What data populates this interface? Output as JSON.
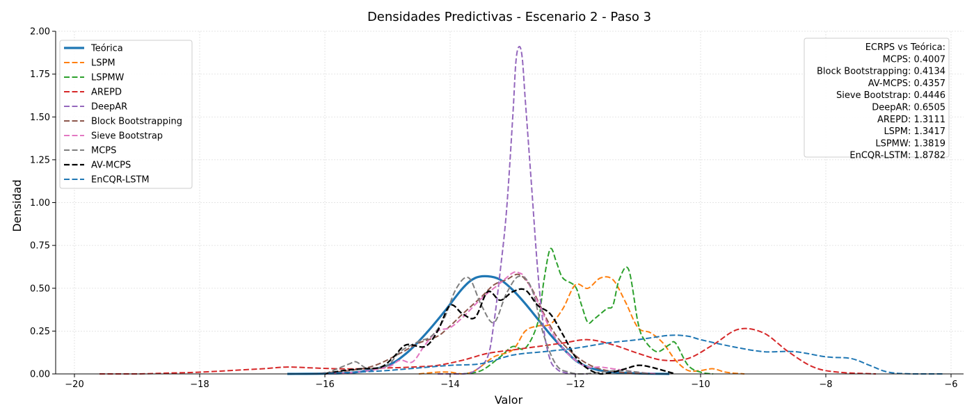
{
  "chart_data": {
    "type": "line",
    "title": "Densidades Predictivas - Escenario 2 - Paso 3",
    "xlabel": "Valor",
    "ylabel": "Densidad",
    "xlim": [
      -20.3,
      -5.8
    ],
    "ylim": [
      0,
      2.0
    ],
    "xticks": [
      -20,
      -18,
      -16,
      -14,
      -12,
      -10,
      -8,
      -6
    ],
    "xtick_labels": [
      "−20",
      "−18",
      "−16",
      "−14",
      "−12",
      "−10",
      "−8",
      "−6"
    ],
    "yticks": [
      0,
      0.25,
      0.5,
      0.75,
      1.0,
      1.25,
      1.5,
      1.75,
      2.0
    ],
    "ytick_labels": [
      "0.00",
      "0.25",
      "0.50",
      "0.75",
      "1.00",
      "1.25",
      "1.50",
      "1.75",
      "2.00"
    ],
    "grid": true,
    "legend_position": "top-left",
    "series": [
      {
        "name": "Teórica",
        "color": "#1f77b4",
        "style": "solid",
        "width": 3.2,
        "x": [
          -16.6,
          -16.0,
          -15.5,
          -15.0,
          -14.7,
          -14.4,
          -14.1,
          -13.8,
          -13.6,
          -13.4,
          -13.2,
          -13.0,
          -12.8,
          -12.6,
          -12.4,
          -12.2,
          -12.0,
          -11.8,
          -11.6,
          -11.4,
          -11.0,
          -10.5
        ],
        "y": [
          0.0,
          0.002,
          0.01,
          0.05,
          0.12,
          0.23,
          0.36,
          0.5,
          0.56,
          0.57,
          0.55,
          0.49,
          0.41,
          0.32,
          0.23,
          0.15,
          0.08,
          0.04,
          0.02,
          0.01,
          0.003,
          0.0
        ]
      },
      {
        "name": "LSPM",
        "color": "#ff7f0e",
        "style": "dashed",
        "width": 2,
        "x": [
          -14.5,
          -14.2,
          -14.0,
          -13.8,
          -13.6,
          -13.3,
          -13.0,
          -12.8,
          -12.6,
          -12.4,
          -12.2,
          -12.0,
          -11.8,
          -11.6,
          -11.4,
          -11.2,
          -11.0,
          -10.8,
          -10.6,
          -10.4,
          -10.2,
          -10.0,
          -9.8,
          -9.6,
          -9.3
        ],
        "y": [
          0.0,
          0.01,
          0.01,
          0.0,
          0.02,
          0.1,
          0.14,
          0.25,
          0.28,
          0.29,
          0.38,
          0.52,
          0.5,
          0.56,
          0.55,
          0.42,
          0.27,
          0.24,
          0.18,
          0.08,
          0.02,
          0.02,
          0.03,
          0.01,
          0.0
        ]
      },
      {
        "name": "LSPMW",
        "color": "#2ca02c",
        "style": "dashed",
        "width": 2,
        "x": [
          -13.8,
          -13.5,
          -13.2,
          -13.0,
          -12.8,
          -12.6,
          -12.5,
          -12.4,
          -12.3,
          -12.2,
          -12.0,
          -11.9,
          -11.8,
          -11.7,
          -11.5,
          -11.4,
          -11.3,
          -11.15,
          -11.0,
          -10.9,
          -10.7,
          -10.5,
          -10.4,
          -10.2,
          -10.0,
          -9.8
        ],
        "y": [
          0.0,
          0.02,
          0.1,
          0.16,
          0.15,
          0.3,
          0.55,
          0.73,
          0.65,
          0.56,
          0.51,
          0.4,
          0.3,
          0.32,
          0.38,
          0.4,
          0.55,
          0.61,
          0.3,
          0.2,
          0.13,
          0.17,
          0.18,
          0.05,
          0.01,
          0.0
        ]
      },
      {
        "name": "AREPD",
        "color": "#d62728",
        "style": "dashed",
        "width": 2,
        "x": [
          -19.6,
          -19.0,
          -18.5,
          -18.0,
          -17.5,
          -17.0,
          -16.6,
          -16.2,
          -15.8,
          -15.4,
          -15.0,
          -14.6,
          -14.2,
          -13.8,
          -13.4,
          -13.0,
          -12.6,
          -12.2,
          -11.8,
          -11.4,
          -11.0,
          -10.6,
          -10.2,
          -9.8,
          -9.4,
          -9.0,
          -8.6,
          -8.2,
          -7.8,
          -7.2
        ],
        "y": [
          0.0,
          0.0,
          0.005,
          0.01,
          0.02,
          0.03,
          0.04,
          0.035,
          0.03,
          0.03,
          0.035,
          0.04,
          0.05,
          0.08,
          0.12,
          0.14,
          0.16,
          0.18,
          0.2,
          0.17,
          0.12,
          0.08,
          0.09,
          0.17,
          0.26,
          0.24,
          0.13,
          0.04,
          0.01,
          0.0
        ]
      },
      {
        "name": "DeepAR",
        "color": "#9467bd",
        "style": "dashed",
        "width": 2,
        "x": [
          -14.2,
          -13.8,
          -13.6,
          -13.4,
          -13.3,
          -13.2,
          -13.1,
          -13.0,
          -12.95,
          -12.9,
          -12.85,
          -12.8,
          -12.7,
          -12.6,
          -12.5,
          -12.4,
          -12.3,
          -12.2,
          -12.0,
          -11.8
        ],
        "y": [
          0.0,
          0.0,
          0.02,
          0.1,
          0.3,
          0.6,
          0.95,
          1.5,
          1.82,
          1.91,
          1.85,
          1.6,
          1.1,
          0.6,
          0.25,
          0.08,
          0.03,
          0.01,
          0.0,
          0.0
        ]
      },
      {
        "name": "Block Bootstrapping",
        "color": "#8c564b",
        "style": "dashed",
        "width": 2,
        "x": [
          -16.2,
          -15.6,
          -15.2,
          -14.8,
          -14.5,
          -14.2,
          -14.0,
          -13.8,
          -13.5,
          -13.3,
          -13.1,
          -12.9,
          -12.7,
          -12.5,
          -12.3,
          -12.1,
          -11.9,
          -11.7,
          -11.5,
          -11.3,
          -11.1,
          -10.8
        ],
        "y": [
          0.0,
          0.02,
          0.05,
          0.12,
          0.18,
          0.22,
          0.28,
          0.35,
          0.45,
          0.52,
          0.55,
          0.58,
          0.5,
          0.35,
          0.22,
          0.14,
          0.08,
          0.04,
          0.02,
          0.01,
          0.005,
          0.0
        ]
      },
      {
        "name": "Sieve Bootstrap",
        "color": "#e377c2",
        "style": "dashed",
        "width": 2,
        "x": [
          -16.0,
          -15.5,
          -15.0,
          -14.8,
          -14.6,
          -14.4,
          -14.2,
          -14.0,
          -13.8,
          -13.5,
          -13.2,
          -13.0,
          -12.9,
          -12.8,
          -12.6,
          -12.4,
          -12.2,
          -12.0,
          -11.8,
          -11.6,
          -11.4,
          -11.2,
          -11.0,
          -10.7
        ],
        "y": [
          0.0,
          0.01,
          0.04,
          0.08,
          0.07,
          0.17,
          0.25,
          0.27,
          0.33,
          0.44,
          0.53,
          0.59,
          0.59,
          0.56,
          0.42,
          0.26,
          0.15,
          0.08,
          0.04,
          0.04,
          0.03,
          0.02,
          0.01,
          0.0
        ]
      },
      {
        "name": "MCPS",
        "color": "#7f7f7f",
        "style": "dashed",
        "width": 2,
        "x": [
          -16.0,
          -15.8,
          -15.6,
          -15.5,
          -15.3,
          -15.0,
          -14.8,
          -14.5,
          -14.3,
          -14.1,
          -13.9,
          -13.7,
          -13.5,
          -13.3,
          -13.1,
          -12.9,
          -12.7,
          -12.5,
          -12.3,
          -12.1,
          -11.9,
          -11.6,
          -11.3,
          -11.0,
          -10.8
        ],
        "y": [
          0.0,
          0.03,
          0.06,
          0.07,
          0.03,
          0.05,
          0.13,
          0.19,
          0.22,
          0.32,
          0.5,
          0.56,
          0.4,
          0.3,
          0.47,
          0.57,
          0.5,
          0.22,
          0.05,
          0.01,
          0.0,
          0.01,
          0.02,
          0.01,
          0.0
        ]
      },
      {
        "name": "AV-MCPS",
        "color": "#000000",
        "style": "dashed",
        "width": 2.3,
        "x": [
          -16.0,
          -15.7,
          -15.4,
          -15.1,
          -14.9,
          -14.7,
          -14.4,
          -14.2,
          -14.0,
          -13.8,
          -13.6,
          -13.4,
          -13.2,
          -13.0,
          -12.8,
          -12.6,
          -12.4,
          -12.2,
          -12.0,
          -11.8,
          -11.6,
          -11.4,
          -11.2,
          -11.0,
          -10.8,
          -10.4
        ],
        "y": [
          0.0,
          0.02,
          0.03,
          0.04,
          0.1,
          0.17,
          0.16,
          0.25,
          0.4,
          0.35,
          0.33,
          0.48,
          0.43,
          0.48,
          0.49,
          0.4,
          0.35,
          0.23,
          0.1,
          0.03,
          0.0,
          0.01,
          0.03,
          0.05,
          0.04,
          0.0
        ]
      },
      {
        "name": "EnCQR-LSTM",
        "color": "#1f77b4",
        "style": "dashed",
        "width": 2,
        "x": [
          -16.2,
          -15.5,
          -15.0,
          -14.5,
          -14.0,
          -13.5,
          -13.0,
          -12.5,
          -12.0,
          -11.5,
          -11.0,
          -10.5,
          -10.2,
          -10.0,
          -9.5,
          -9.0,
          -8.5,
          -8.0,
          -7.6,
          -7.3,
          -7.0,
          -6.6,
          -6.1
        ],
        "y": [
          0.0,
          0.01,
          0.02,
          0.035,
          0.05,
          0.06,
          0.11,
          0.13,
          0.15,
          0.18,
          0.2,
          0.225,
          0.22,
          0.2,
          0.16,
          0.13,
          0.13,
          0.1,
          0.09,
          0.05,
          0.01,
          0.0,
          0.0
        ]
      }
    ],
    "annotation": {
      "title": "ECRPS vs Teórica:",
      "lines": [
        "MCPS: 0.4007",
        "Block Bootstrapping: 0.4134",
        "AV-MCPS: 0.4357",
        "Sieve Bootstrap: 0.4446",
        "DeepAR: 0.6505",
        "AREPD: 1.3111",
        "LSPM: 1.3417",
        "LSPMW: 1.3819",
        "EnCQR-LSTM: 1.8782"
      ]
    }
  }
}
